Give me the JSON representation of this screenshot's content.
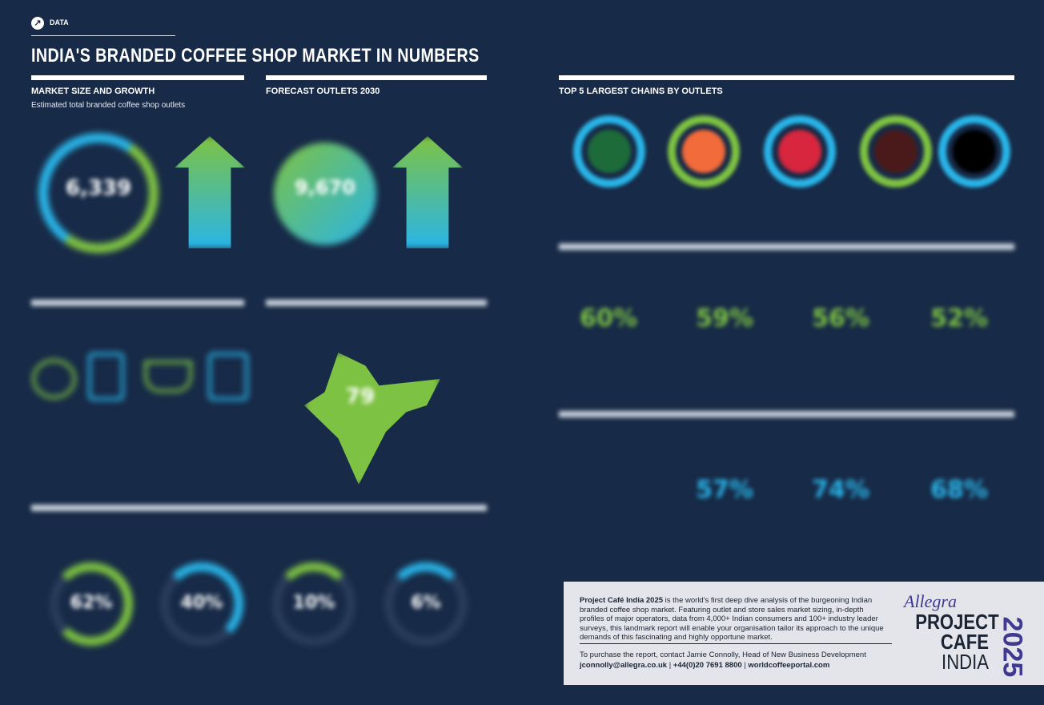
{
  "header": {
    "tag": "DATA",
    "title": "INDIA'S BRANDED COFFEE SHOP MARKET IN NUMBERS"
  },
  "sections": {
    "market": {
      "title": "MARKET SIZE AND GROWTH",
      "subtitle": "Estimated total branded coffee shop outlets",
      "value": "6,339"
    },
    "forecast": {
      "title": "FORECAST OUTLETS 2030",
      "value": "9,670"
    },
    "chains": {
      "title": "TOP 5 LARGEST CHAINS BY OUTLETS"
    }
  },
  "stats": {
    "percents_left": [
      "62%",
      "40%",
      "10%",
      "6%"
    ],
    "percents_right_top": [
      "60%",
      "59%",
      "56%",
      "52%"
    ],
    "percents_right_bottom": [
      "57%",
      "74%",
      "68%"
    ],
    "map_value": "79"
  },
  "colors": {
    "bg": "#172a47",
    "green": "#7dc242",
    "cyan": "#29b5e8"
  },
  "info": {
    "bold": "Project Café India 2025",
    "body": " is the world's first deep dive analysis of the burgeoning Indian branded coffee shop market. Featuring outlet and store sales market sizing, in-depth profiles of major operators, data from 4,000+ Indian consumers and 100+ industry leader surveys, this landmark report will enable your organisation tailor its approach to the unique demands of this fascinating and highly opportune market.",
    "contact": "To purchase the report, contact Jamie Connolly, Head of New Business Development",
    "email": "jconnolly@allegra.co.uk",
    "phone": "+44(0)20 7691 8800",
    "site": "worldcoffeeportal.com",
    "sep": "|"
  },
  "brand": {
    "allegra": "Allegra",
    "project": "PROJECT",
    "cafe": "CAFE",
    "india": "INDIA",
    "year": "2025"
  }
}
